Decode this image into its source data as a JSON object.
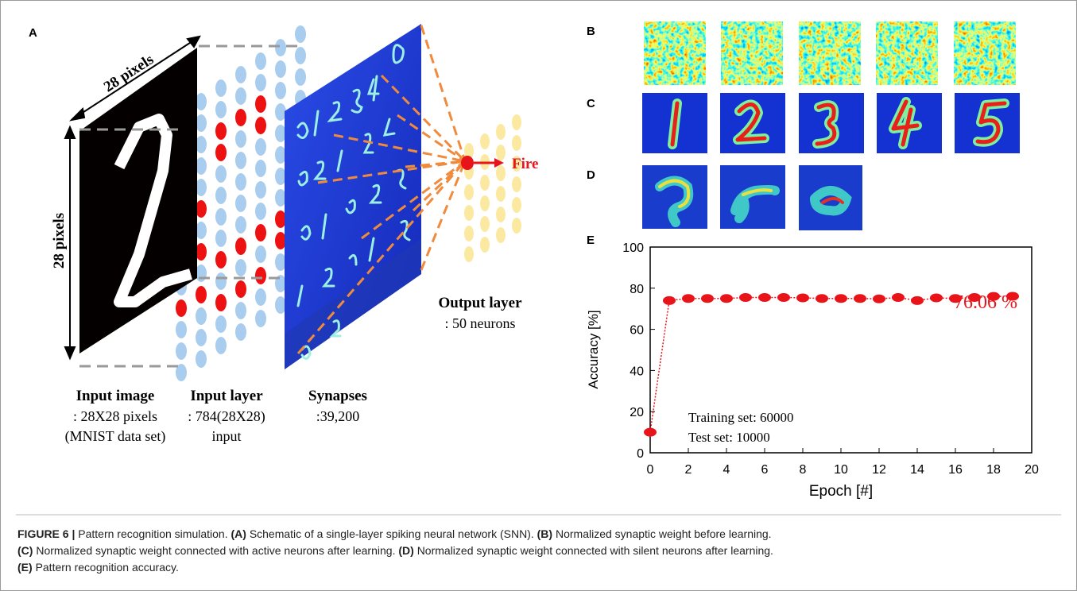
{
  "figure": {
    "panels": [
      "A",
      "B",
      "C",
      "D",
      "E"
    ],
    "schematic": {
      "dim_top": "28 pixels",
      "dim_left": "28 pixels",
      "fire": "Fire",
      "output_title": "Output layer",
      "output_sub": ": 50 neurons",
      "labels": [
        {
          "title": "Input image",
          "lines": [
            ": 28X28 pixels",
            "(MNIST data set)"
          ]
        },
        {
          "title": "Input layer",
          "lines": [
            ": 784(28X28)",
            "input"
          ]
        },
        {
          "title": "Synapses",
          "lines": [
            ":39,200"
          ]
        }
      ]
    }
  },
  "chart_data": {
    "type": "line",
    "x": [
      0,
      1,
      2,
      3,
      4,
      5,
      6,
      7,
      8,
      9,
      10,
      11,
      12,
      13,
      14,
      15,
      16,
      17,
      18,
      19
    ],
    "values": [
      10,
      74,
      75,
      75,
      75,
      75.5,
      75.5,
      75.5,
      75.3,
      75,
      75,
      75,
      74.8,
      75.5,
      74,
      75.3,
      75,
      75.5,
      76,
      76.06
    ],
    "color": "#e8141a",
    "xlim": [
      0,
      20
    ],
    "ylim": [
      0,
      100
    ],
    "xticks": [
      0,
      2,
      4,
      6,
      8,
      10,
      12,
      14,
      16,
      18,
      20
    ],
    "yticks": [
      0,
      20,
      40,
      60,
      80,
      100
    ],
    "xlabel": "Epoch [#]",
    "ylabel": "Accuracy [%]",
    "annotations": [
      "76.06 %",
      "Training set: 60000",
      "Test set: 10000"
    ]
  },
  "caption": {
    "label": "FIGURE 6 |",
    "title": "Pattern recognition simulation.",
    "items": [
      {
        "tag": "(A)",
        "text": "Schematic of a single-layer spiking neural network (SNN)."
      },
      {
        "tag": "(B)",
        "text": "Normalized synaptic weight before learning."
      },
      {
        "tag": "(C)",
        "text": "Normalized synaptic weight connected with active neurons after learning."
      },
      {
        "tag": "(D)",
        "text": "Normalized synaptic weight connected with silent neurons after learning."
      },
      {
        "tag": "(E)",
        "text": "Pattern recognition accuracy."
      }
    ]
  }
}
